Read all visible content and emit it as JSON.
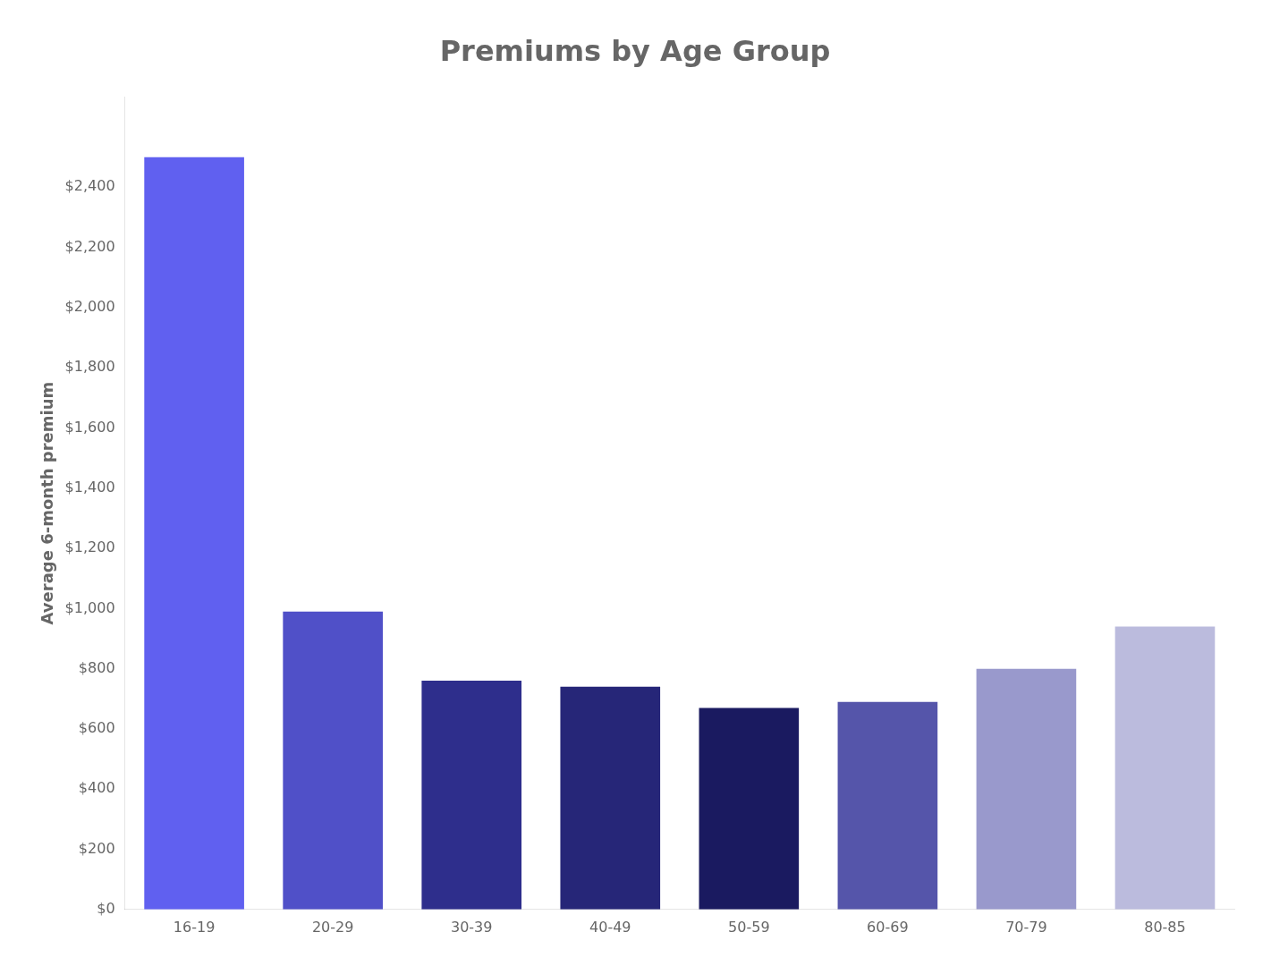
{
  "chart_data": {
    "type": "bar",
    "title": "Premiums by Age Group",
    "ylabel": "Average 6-month premium",
    "categories": [
      "16-19",
      "20-29",
      "30-39",
      "40-49",
      "50-59",
      "60-69",
      "70-79",
      "80-85"
    ],
    "values": [
      2500,
      990,
      760,
      740,
      670,
      690,
      800,
      940
    ],
    "colors": [
      "#6060f0",
      "#5050c8",
      "#2e2e8c",
      "#262678",
      "#1a1a60",
      "#5555aa",
      "#9999cc",
      "#bbbbdd"
    ],
    "ylim": [
      0,
      2700
    ],
    "yticks": [
      {
        "value": 0,
        "label": "$0"
      },
      {
        "value": 200,
        "label": "$200"
      },
      {
        "value": 400,
        "label": "$400"
      },
      {
        "value": 600,
        "label": "$600"
      },
      {
        "value": 800,
        "label": "$800"
      },
      {
        "value": 1000,
        "label": "$1,000"
      },
      {
        "value": 1200,
        "label": "$1,200"
      },
      {
        "value": 1400,
        "label": "$1,400"
      },
      {
        "value": 1600,
        "label": "$1,600"
      },
      {
        "value": 1800,
        "label": "$1,800"
      },
      {
        "value": 2000,
        "label": "$2,000"
      },
      {
        "value": 2200,
        "label": "$2,200"
      },
      {
        "value": 2400,
        "label": "$2,400"
      }
    ],
    "grid": false
  }
}
